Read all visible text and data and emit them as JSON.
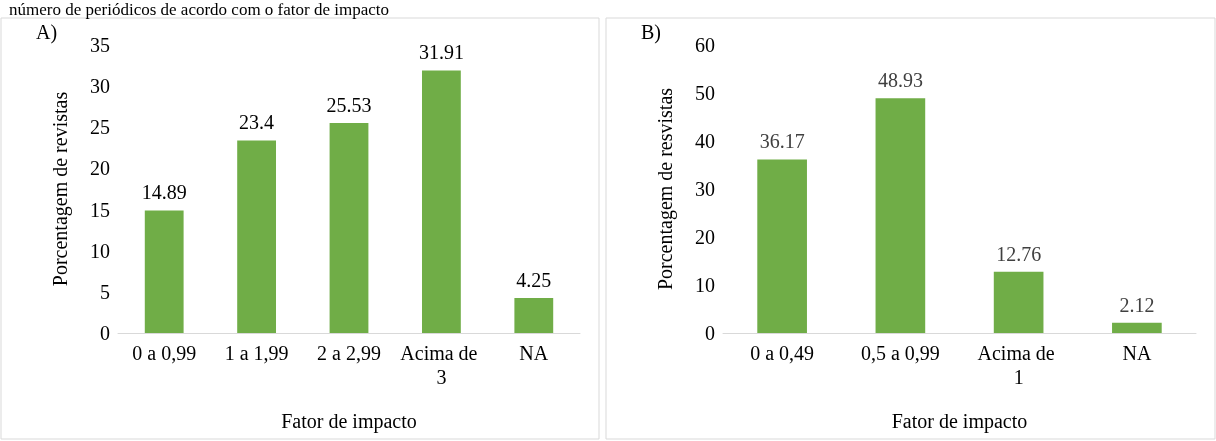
{
  "chart_data": [
    {
      "type": "bar",
      "title": "número de periódicos de acordo com o fator de impacto",
      "annotations": [
        "A)"
      ],
      "xlabel": "Fator de impacto",
      "ylabel": "Porcentagem de revistas",
      "categories": [
        "0 a 0,99",
        "1 a 1,99",
        "2 a 2,99",
        "Acima de 3",
        "NA"
      ],
      "values": [
        14.89,
        23.4,
        25.53,
        31.91,
        4.25
      ],
      "color": "#70ad47",
      "ylim": [
        0,
        35
      ],
      "yticks": [
        0,
        5,
        10,
        15,
        20,
        25,
        30,
        35
      ],
      "grid": false,
      "data_labels": true
    },
    {
      "type": "bar",
      "annotations": [
        "B)"
      ],
      "xlabel": "Fator de impacto",
      "ylabel": "Porcentagem de resvistas",
      "categories": [
        "0 a 0,49",
        "0,5 a 0,99",
        "Acima de 1",
        "NA"
      ],
      "values": [
        36.17,
        48.93,
        12.76,
        2.12
      ],
      "color": "#70ad47",
      "ylim": [
        0,
        60
      ],
      "yticks": [
        0,
        10,
        20,
        30,
        40,
        50,
        60
      ],
      "grid": false,
      "data_labels": true
    }
  ]
}
